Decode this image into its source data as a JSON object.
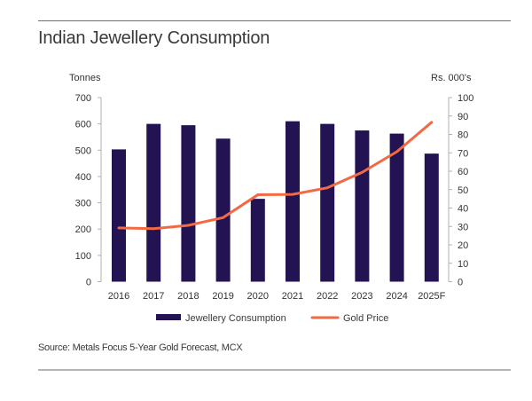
{
  "page": {
    "title": "Indian Jewellery Consumption",
    "source": "Source: Metals Focus 5-Year Gold Forecast, MCX"
  },
  "colors": {
    "bar": "#241352",
    "line": "#f26a43",
    "axis": "#b0b0b0"
  },
  "chart_data": {
    "type": "bar",
    "title": "Indian Jewellery Consumption",
    "categories": [
      "2016",
      "2017",
      "2018",
      "2019",
      "2020",
      "2021",
      "2022",
      "2023",
      "2024",
      "2025F"
    ],
    "series": [
      {
        "name": "Jewellery Consumption",
        "type": "bar",
        "axis": "left",
        "unit": "Tonnes",
        "values": [
          503,
          600,
          595,
          544,
          315,
          610,
          600,
          575,
          563,
          487
        ]
      },
      {
        "name": "Gold Price",
        "type": "line",
        "axis": "right",
        "unit": "Rs. 000's",
        "values": [
          29.2,
          28.8,
          30.6,
          34.8,
          47.2,
          47.4,
          51.0,
          59.4,
          70.6,
          86.6
        ]
      }
    ],
    "left_axis": {
      "label": "Tonnes",
      "ylim": [
        0,
        700
      ],
      "ticks": [
        0,
        100,
        200,
        300,
        400,
        500,
        600,
        700
      ]
    },
    "right_axis": {
      "label": "Rs. 000's",
      "ylim": [
        0,
        100
      ],
      "ticks": [
        0,
        10,
        20,
        30,
        40,
        50,
        60,
        70,
        80,
        90,
        100
      ]
    },
    "xlabel": "",
    "grid": false,
    "legend": {
      "position": "bottom",
      "entries": [
        "Jewellery Consumption",
        "Gold Price"
      ]
    }
  }
}
